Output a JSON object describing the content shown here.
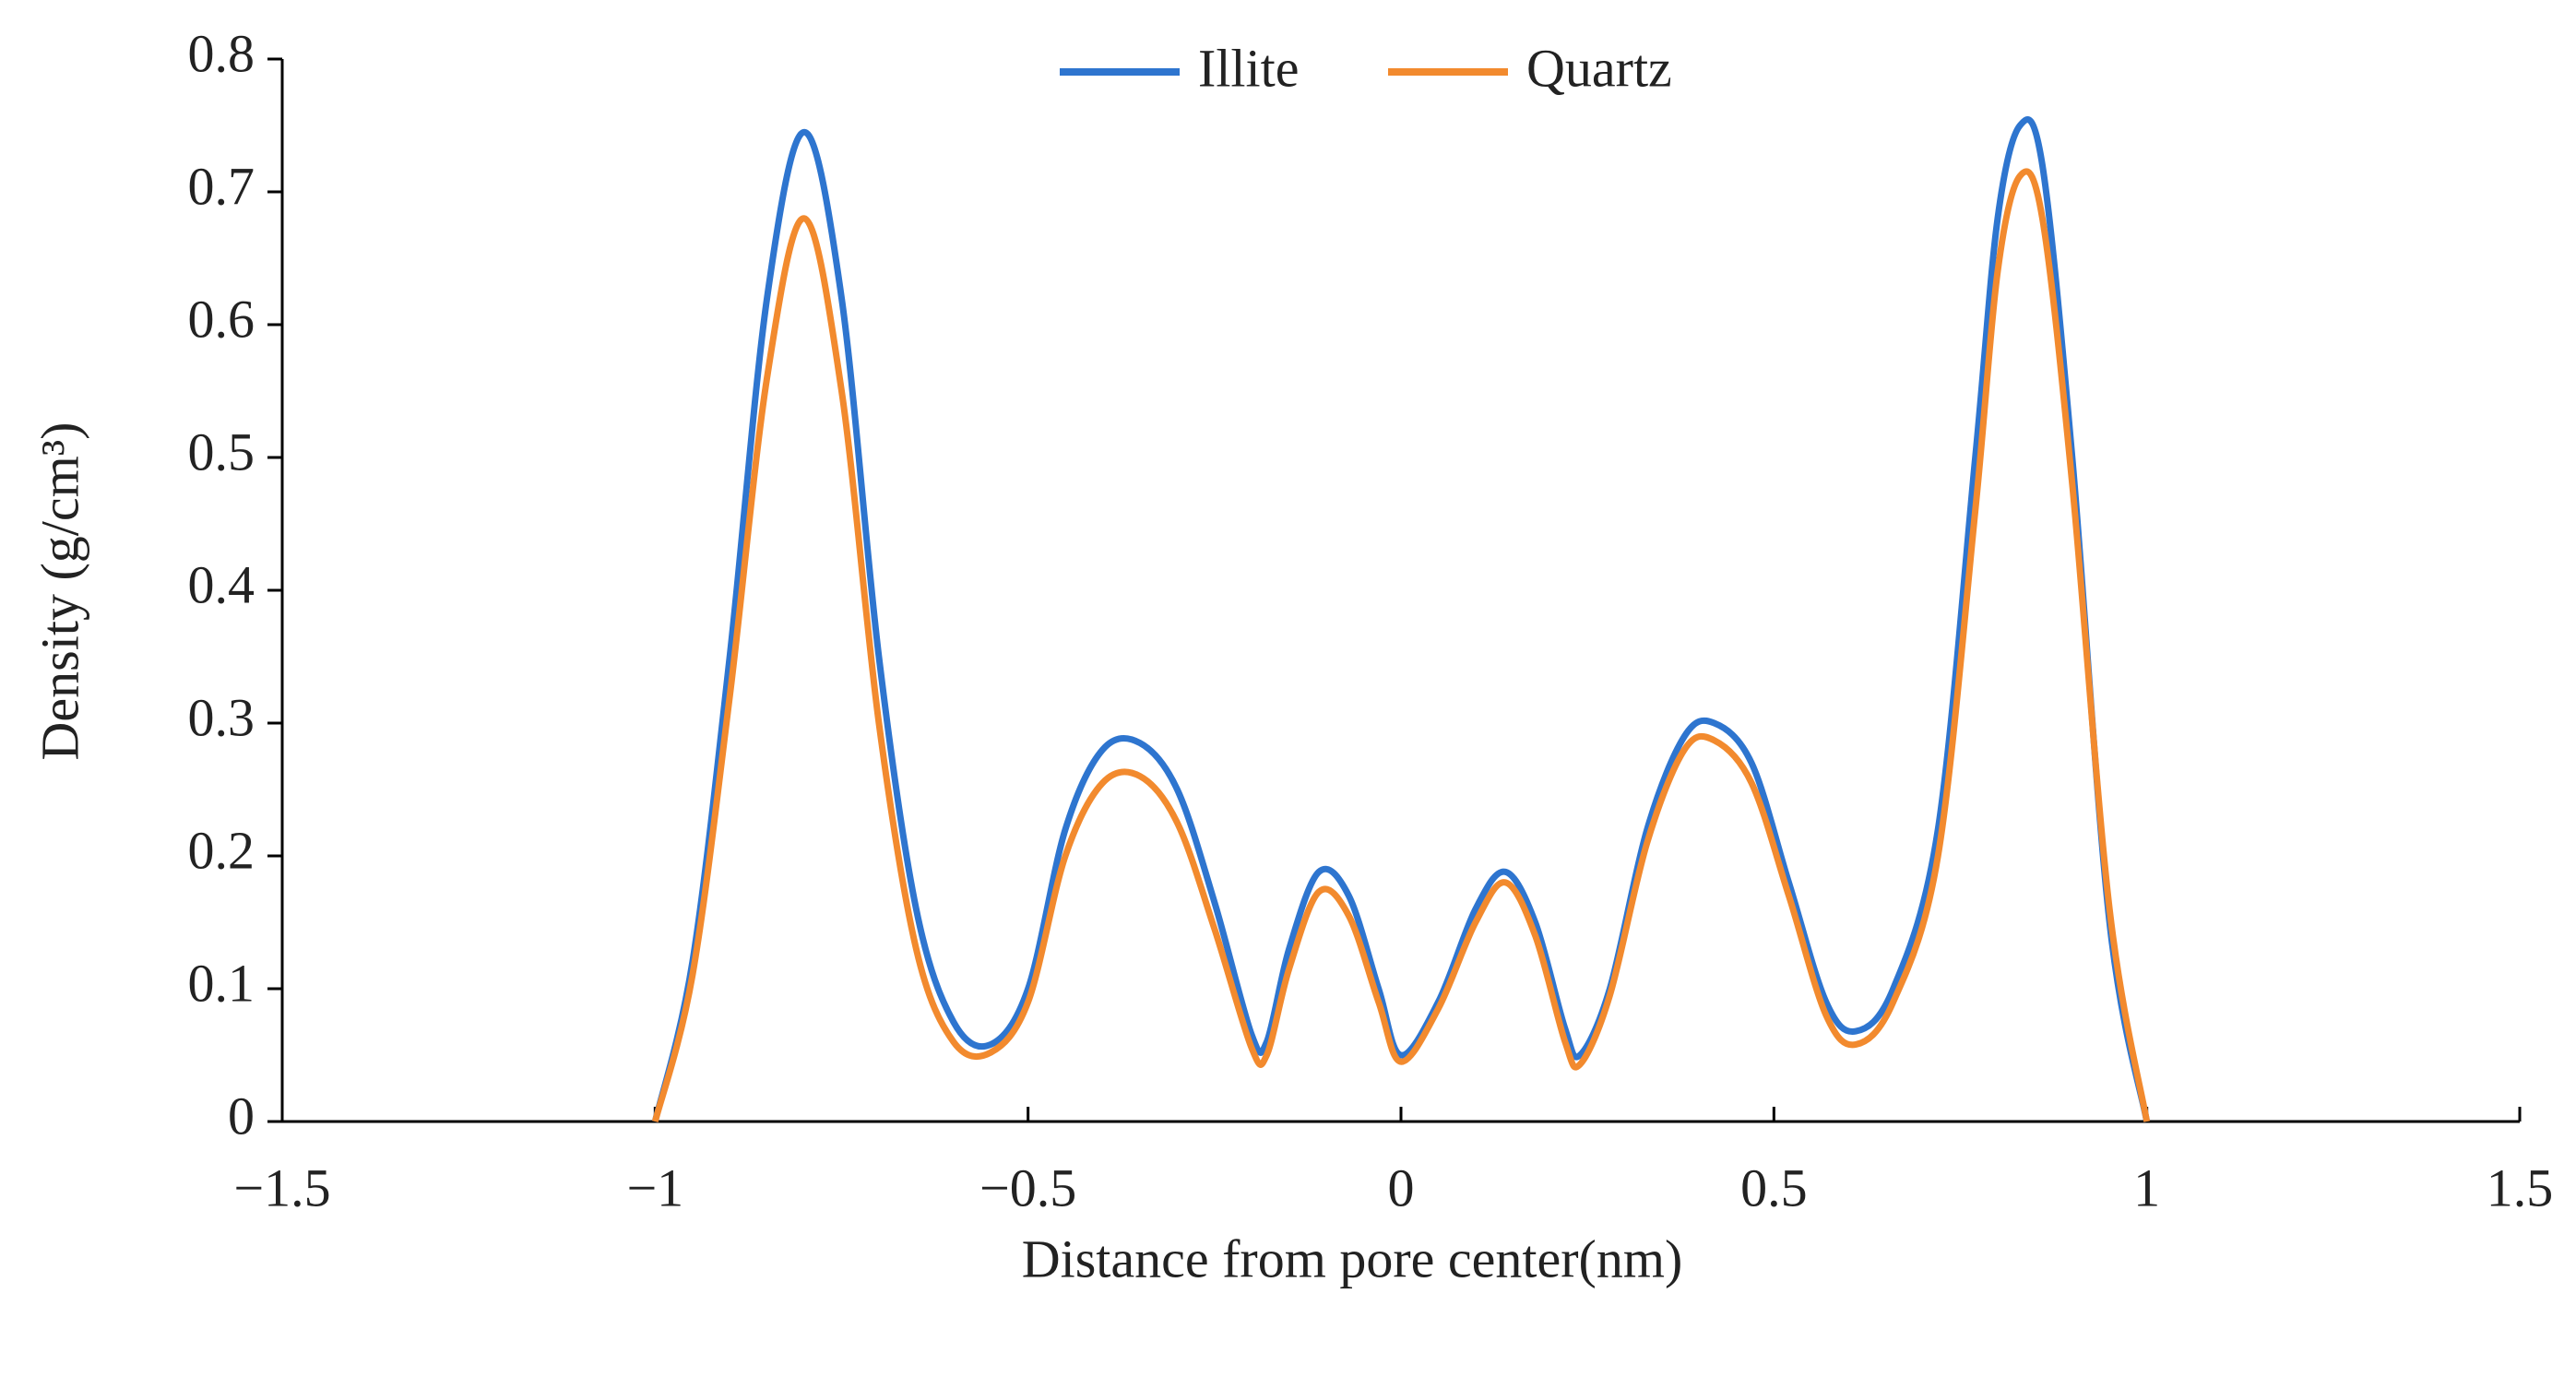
{
  "chart_data": {
    "type": "line",
    "x_label": "Distance from pore center(nm)",
    "y_label": "Density (g/cm³)",
    "xlim": [
      -1.5,
      1.5
    ],
    "xticks": [
      {
        "value": -1.5,
        "label": "−1.5"
      },
      {
        "value": -1,
        "label": "−1"
      },
      {
        "value": -0.5,
        "label": "−0.5"
      },
      0,
      0.5,
      1,
      1.5
    ],
    "ylim": [
      0,
      0.8
    ],
    "yticks": [
      0,
      0.1,
      0.2,
      0.3,
      0.4,
      0.5,
      0.6,
      0.7,
      0.8
    ],
    "legend": "top",
    "x": [
      -1,
      -0.95,
      -0.9,
      -0.85,
      -0.8,
      -0.75,
      -0.7,
      -0.65,
      -0.6,
      -0.55,
      -0.5,
      -0.45,
      -0.4,
      -0.35,
      -0.3,
      -0.25,
      -0.2,
      -0.18,
      -0.15,
      -0.11,
      -0.07,
      -0.03,
      0,
      0.05,
      0.1,
      0.14,
      0.18,
      0.22,
      0.24,
      0.28,
      0.33,
      0.38,
      0.42,
      0.47,
      0.52,
      0.57,
      0.61,
      0.66,
      0.72,
      0.77,
      0.8,
      0.83,
      0.86,
      0.9,
      0.95,
      1
    ],
    "series": [
      {
        "name": "Illite",
        "color": "#2e75cf",
        "values": [
          0,
          0.12,
          0.35,
          0.62,
          0.745,
          0.62,
          0.35,
          0.16,
          0.075,
          0.058,
          0.1,
          0.22,
          0.28,
          0.285,
          0.25,
          0.165,
          0.065,
          0.06,
          0.13,
          0.188,
          0.17,
          0.1,
          0.05,
          0.09,
          0.16,
          0.188,
          0.15,
          0.07,
          0.05,
          0.1,
          0.22,
          0.29,
          0.3,
          0.27,
          0.18,
          0.09,
          0.068,
          0.1,
          0.22,
          0.5,
          0.68,
          0.75,
          0.72,
          0.5,
          0.15,
          0
        ]
      },
      {
        "name": "Quartz",
        "color": "#f28a2e",
        "values": [
          0,
          0.11,
          0.32,
          0.56,
          0.68,
          0.55,
          0.3,
          0.13,
          0.06,
          0.052,
          0.09,
          0.2,
          0.255,
          0.26,
          0.225,
          0.145,
          0.055,
          0.05,
          0.115,
          0.173,
          0.155,
          0.09,
          0.045,
          0.085,
          0.15,
          0.18,
          0.14,
          0.06,
          0.043,
          0.095,
          0.21,
          0.28,
          0.287,
          0.255,
          0.17,
          0.08,
          0.058,
          0.09,
          0.2,
          0.46,
          0.64,
          0.712,
          0.68,
          0.48,
          0.16,
          0
        ]
      }
    ]
  }
}
